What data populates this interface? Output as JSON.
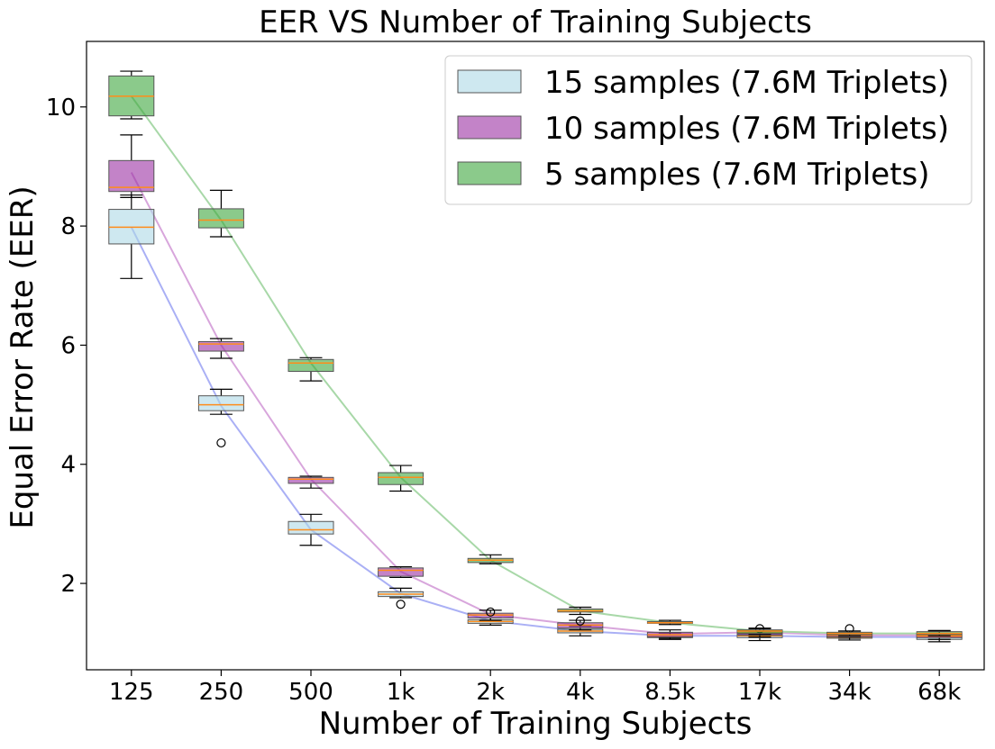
{
  "chart_data": {
    "type": "box",
    "title": "EER VS Number of Training Subjects",
    "xlabel": "Number of Training Subjects",
    "ylabel": "Equal Error Rate (EER)",
    "categories": [
      "125",
      "250",
      "500",
      "1k",
      "2k",
      "4k",
      "8.5k",
      "17k",
      "34k",
      "68k"
    ],
    "ylim": [
      0.55,
      11.1
    ],
    "yticks": [
      2,
      4,
      6,
      8,
      10
    ],
    "grid": false,
    "legend_position": "top-right",
    "series": [
      {
        "name": "15 samples (7.6M Triplets)",
        "color": "#add8e6",
        "line_color": "#aab0f5",
        "offset": 0,
        "trend": [
          7.98,
          4.98,
          2.9,
          1.83,
          1.37,
          1.2,
          1.12,
          1.12,
          1.1,
          1.1
        ],
        "boxes": [
          {
            "whislo": 7.12,
            "q1": 7.7,
            "med": 7.98,
            "q3": 8.28,
            "whishi": 8.52,
            "fliers": []
          },
          {
            "whislo": 4.84,
            "q1": 4.9,
            "med": 5.0,
            "q3": 5.15,
            "whishi": 5.26,
            "fliers": [
              4.36
            ]
          },
          {
            "whislo": 2.64,
            "q1": 2.83,
            "med": 2.9,
            "q3": 3.04,
            "whishi": 3.16,
            "fliers": []
          },
          {
            "whislo": 1.76,
            "q1": 1.78,
            "med": 1.82,
            "q3": 1.86,
            "whishi": 1.92,
            "fliers": [
              1.65
            ]
          },
          {
            "whislo": 1.3,
            "q1": 1.33,
            "med": 1.36,
            "q3": 1.39,
            "whishi": 1.42,
            "fliers": []
          },
          {
            "whislo": 1.12,
            "q1": 1.17,
            "med": 1.2,
            "q3": 1.23,
            "whishi": 1.28,
            "fliers": []
          },
          {
            "whislo": 1.06,
            "q1": 1.09,
            "med": 1.11,
            "q3": 1.14,
            "whishi": 1.17,
            "fliers": []
          },
          {
            "whislo": 1.04,
            "q1": 1.09,
            "med": 1.12,
            "q3": 1.15,
            "whishi": 1.19,
            "fliers": []
          },
          {
            "whislo": 1.05,
            "q1": 1.08,
            "med": 1.1,
            "q3": 1.12,
            "whishi": 1.15,
            "fliers": []
          },
          {
            "whislo": 1.02,
            "q1": 1.06,
            "med": 1.1,
            "q3": 1.13,
            "whishi": 1.16,
            "fliers": []
          }
        ]
      },
      {
        "name": "10 samples (7.6M Triplets)",
        "color": "#9b30a3",
        "line_color": "#d8a6dc",
        "offset": 0,
        "trend": [
          8.9,
          6.0,
          3.75,
          2.2,
          1.48,
          1.3,
          1.15,
          1.18,
          1.13,
          1.13
        ],
        "boxes": [
          {
            "whislo": 8.48,
            "q1": 8.58,
            "med": 8.65,
            "q3": 9.1,
            "whishi": 9.53,
            "fliers": []
          },
          {
            "whislo": 5.78,
            "q1": 5.9,
            "med": 6.02,
            "q3": 6.06,
            "whishi": 6.11,
            "fliers": []
          },
          {
            "whislo": 3.6,
            "q1": 3.68,
            "med": 3.75,
            "q3": 3.78,
            "whishi": 3.8,
            "fliers": []
          },
          {
            "whislo": 2.1,
            "q1": 2.12,
            "med": 2.22,
            "q3": 2.26,
            "whishi": 2.28,
            "fliers": []
          },
          {
            "whislo": 1.38,
            "q1": 1.42,
            "med": 1.47,
            "q3": 1.5,
            "whishi": 1.55,
            "fliers": [
              1.52
            ]
          },
          {
            "whislo": 1.22,
            "q1": 1.25,
            "med": 1.3,
            "q3": 1.34,
            "whishi": 1.38,
            "fliers": [
              1.37
            ]
          },
          {
            "whislo": 1.08,
            "q1": 1.1,
            "med": 1.14,
            "q3": 1.18,
            "whishi": 1.22,
            "fliers": []
          },
          {
            "whislo": 1.1,
            "q1": 1.13,
            "med": 1.17,
            "q3": 1.21,
            "whishi": 1.25,
            "fliers": [
              1.24
            ]
          },
          {
            "whislo": 1.08,
            "q1": 1.1,
            "med": 1.13,
            "q3": 1.16,
            "whishi": 1.2,
            "fliers": [
              1.24
            ]
          },
          {
            "whislo": 1.06,
            "q1": 1.09,
            "med": 1.12,
            "q3": 1.16,
            "whishi": 1.2,
            "fliers": []
          }
        ]
      },
      {
        "name": " 5 samples (7.6M Triplets)",
        "color": "#3da63d",
        "line_color": "#a8d8a8",
        "offset": 0,
        "trend": [
          10.18,
          8.1,
          5.7,
          3.78,
          2.39,
          1.54,
          1.34,
          1.2,
          1.16,
          1.16
        ],
        "boxes": [
          {
            "whislo": 9.8,
            "q1": 9.85,
            "med": 10.18,
            "q3": 10.52,
            "whishi": 10.6,
            "fliers": []
          },
          {
            "whislo": 7.82,
            "q1": 7.97,
            "med": 8.1,
            "q3": 8.29,
            "whishi": 8.6,
            "fliers": []
          },
          {
            "whislo": 5.4,
            "q1": 5.56,
            "med": 5.7,
            "q3": 5.76,
            "whishi": 5.79,
            "fliers": []
          },
          {
            "whislo": 3.55,
            "q1": 3.66,
            "med": 3.78,
            "q3": 3.86,
            "whishi": 3.98,
            "fliers": []
          },
          {
            "whislo": 2.33,
            "q1": 2.35,
            "med": 2.39,
            "q3": 2.42,
            "whishi": 2.48,
            "fliers": []
          },
          {
            "whislo": 1.48,
            "q1": 1.52,
            "med": 1.54,
            "q3": 1.57,
            "whishi": 1.6,
            "fliers": []
          },
          {
            "whislo": 1.31,
            "q1": 1.33,
            "med": 1.34,
            "q3": 1.36,
            "whishi": 1.38,
            "fliers": []
          },
          {
            "whislo": 1.14,
            "q1": 1.16,
            "med": 1.2,
            "q3": 1.22,
            "whishi": 1.24,
            "fliers": []
          },
          {
            "whislo": 1.12,
            "q1": 1.14,
            "med": 1.16,
            "q3": 1.18,
            "whishi": 1.2,
            "fliers": []
          },
          {
            "whislo": 1.12,
            "q1": 1.14,
            "med": 1.16,
            "q3": 1.19,
            "whishi": 1.21,
            "fliers": []
          }
        ]
      }
    ]
  }
}
